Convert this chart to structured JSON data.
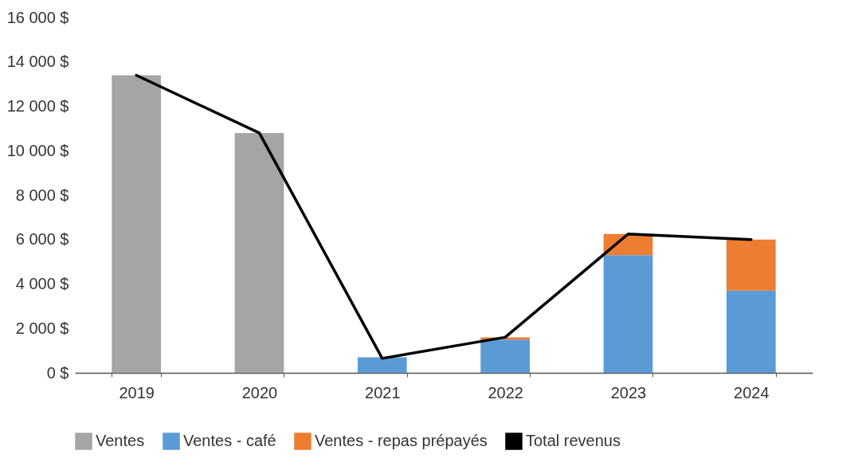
{
  "chart_data": {
    "type": "bar",
    "stacked": true,
    "categories": [
      "2019",
      "2020",
      "2021",
      "2022",
      "2023",
      "2024"
    ],
    "series": [
      {
        "name": "Ventes",
        "color": "#a5a5a5",
        "values": [
          13400,
          10800,
          null,
          null,
          null,
          null
        ]
      },
      {
        "name": "Ventes - café",
        "color": "#5b9bd5",
        "values": [
          null,
          null,
          700,
          1500,
          5300,
          3700
        ]
      },
      {
        "name": "Ventes - repas prépayés",
        "color": "#ed7d31",
        "values": [
          null,
          null,
          null,
          100,
          950,
          2300
        ]
      },
      {
        "name": "Total revenus",
        "type": "line",
        "color": "#000000",
        "values": [
          13400,
          10800,
          650,
          1600,
          6250,
          6000
        ]
      }
    ],
    "ylim": [
      0,
      16000
    ],
    "yticks": [
      {
        "value": 0,
        "label": "0 $"
      },
      {
        "value": 2000,
        "label": "2 000 $"
      },
      {
        "value": 4000,
        "label": "4 000 $"
      },
      {
        "value": 6000,
        "label": "6 000 $"
      },
      {
        "value": 8000,
        "label": "8 000 $"
      },
      {
        "value": 10000,
        "label": "10 000 $"
      },
      {
        "value": 12000,
        "label": "12 000 $"
      },
      {
        "value": 14000,
        "label": "14 000 $"
      },
      {
        "value": 16000,
        "label": "16 000 $"
      }
    ],
    "grid": false,
    "legend": "bottom"
  }
}
